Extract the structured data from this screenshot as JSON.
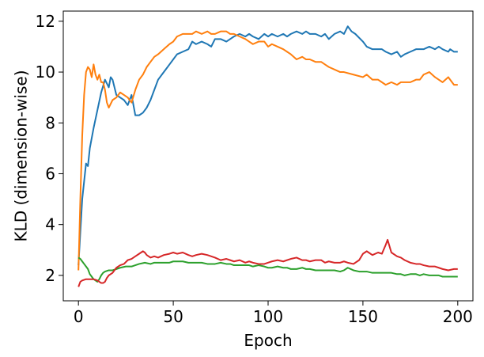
{
  "chart_data": {
    "type": "line",
    "title": "",
    "xlabel": "Epoch",
    "ylabel": "KLD (dimension-wise)",
    "xlim": [
      -8,
      208
    ],
    "ylim": [
      1.0,
      12.4
    ],
    "grid": false,
    "legend": "none",
    "xticks": [
      {
        "value": 0,
        "label": "0"
      },
      {
        "value": 50,
        "label": "50"
      },
      {
        "value": 100,
        "label": "100"
      },
      {
        "value": 150,
        "label": "150"
      },
      {
        "value": 200,
        "label": "200"
      }
    ],
    "yticks": [
      {
        "value": 2,
        "label": "2"
      },
      {
        "value": 4,
        "label": "4"
      },
      {
        "value": 6,
        "label": "6"
      },
      {
        "value": 8,
        "label": "8"
      },
      {
        "value": 10,
        "label": "10"
      },
      {
        "value": 12,
        "label": "12"
      }
    ],
    "series": [
      {
        "color": "#1f77b4",
        "x": [
          0,
          2,
          4,
          5,
          6,
          8,
          10,
          12,
          14,
          16,
          17,
          18,
          20,
          22,
          24,
          26,
          28,
          30,
          32,
          34,
          36,
          38,
          40,
          42,
          44,
          46,
          48,
          50,
          52,
          55,
          58,
          60,
          62,
          65,
          68,
          70,
          72,
          75,
          78,
          80,
          82,
          85,
          88,
          90,
          92,
          95,
          98,
          100,
          102,
          105,
          108,
          110,
          112,
          115,
          118,
          120,
          122,
          125,
          128,
          130,
          132,
          135,
          138,
          140,
          142,
          144,
          146,
          150,
          152,
          155,
          158,
          160,
          162,
          165,
          168,
          170,
          172,
          175,
          178,
          180,
          182,
          185,
          188,
          190,
          192,
          195,
          196,
          198,
          200
        ],
        "y": [
          2.4,
          5.0,
          6.4,
          6.3,
          7.0,
          7.8,
          8.5,
          9.2,
          9.7,
          9.4,
          9.8,
          9.7,
          9.1,
          9.0,
          8.9,
          8.7,
          9.1,
          8.3,
          8.3,
          8.4,
          8.6,
          8.9,
          9.3,
          9.7,
          9.9,
          10.1,
          10.3,
          10.5,
          10.7,
          10.8,
          10.9,
          11.2,
          11.1,
          11.2,
          11.1,
          11.0,
          11.3,
          11.3,
          11.2,
          11.3,
          11.4,
          11.5,
          11.4,
          11.5,
          11.4,
          11.3,
          11.5,
          11.4,
          11.5,
          11.4,
          11.5,
          11.4,
          11.5,
          11.6,
          11.5,
          11.6,
          11.5,
          11.5,
          11.4,
          11.5,
          11.3,
          11.5,
          11.6,
          11.5,
          11.8,
          11.6,
          11.5,
          11.2,
          11.0,
          10.9,
          10.9,
          10.9,
          10.8,
          10.7,
          10.8,
          10.6,
          10.7,
          10.8,
          10.9,
          10.9,
          10.9,
          11.0,
          10.9,
          11.0,
          10.9,
          10.8,
          10.9,
          10.8,
          10.8
        ]
      },
      {
        "color": "#ff7f0e",
        "x": [
          0,
          1,
          2,
          3,
          4,
          5,
          6,
          7,
          8,
          9,
          10,
          11,
          12,
          13,
          14,
          15,
          16,
          18,
          20,
          22,
          24,
          26,
          28,
          30,
          32,
          34,
          36,
          38,
          40,
          42,
          45,
          48,
          50,
          52,
          55,
          58,
          60,
          62,
          65,
          68,
          70,
          72,
          75,
          78,
          80,
          82,
          85,
          88,
          90,
          92,
          95,
          98,
          100,
          102,
          105,
          108,
          110,
          112,
          115,
          118,
          120,
          122,
          125,
          128,
          130,
          132,
          135,
          138,
          140,
          145,
          150,
          152,
          155,
          158,
          160,
          162,
          165,
          168,
          170,
          172,
          175,
          178,
          180,
          182,
          185,
          188,
          190,
          192,
          195,
          198,
          200
        ],
        "y": [
          2.2,
          5.0,
          7.5,
          9.1,
          10.0,
          10.2,
          10.1,
          9.8,
          10.3,
          9.9,
          9.7,
          9.9,
          9.6,
          9.6,
          9.3,
          8.8,
          8.6,
          8.9,
          9.0,
          9.2,
          9.1,
          9.0,
          8.8,
          9.3,
          9.7,
          9.9,
          10.2,
          10.4,
          10.6,
          10.7,
          10.9,
          11.1,
          11.2,
          11.4,
          11.5,
          11.5,
          11.5,
          11.6,
          11.5,
          11.6,
          11.5,
          11.5,
          11.6,
          11.6,
          11.5,
          11.5,
          11.4,
          11.3,
          11.2,
          11.1,
          11.2,
          11.2,
          11.0,
          11.1,
          11.0,
          10.9,
          10.8,
          10.7,
          10.5,
          10.6,
          10.5,
          10.5,
          10.4,
          10.4,
          10.3,
          10.2,
          10.1,
          10.0,
          10.0,
          9.9,
          9.8,
          9.9,
          9.7,
          9.7,
          9.6,
          9.5,
          9.6,
          9.5,
          9.6,
          9.6,
          9.6,
          9.7,
          9.7,
          9.9,
          10.0,
          9.8,
          9.7,
          9.6,
          9.8,
          9.5,
          9.5
        ]
      },
      {
        "color": "#2ca02c",
        "x": [
          0,
          1,
          2,
          3,
          4,
          5,
          6,
          7,
          8,
          9,
          10,
          11,
          12,
          13,
          14,
          16,
          18,
          20,
          22,
          25,
          28,
          30,
          32,
          35,
          38,
          40,
          42,
          45,
          48,
          50,
          52,
          55,
          58,
          60,
          62,
          65,
          68,
          70,
          72,
          75,
          78,
          80,
          82,
          85,
          88,
          90,
          92,
          95,
          98,
          100,
          102,
          105,
          108,
          110,
          112,
          115,
          118,
          120,
          122,
          125,
          128,
          130,
          132,
          135,
          138,
          140,
          142,
          145,
          148,
          150,
          152,
          155,
          158,
          160,
          162,
          165,
          168,
          170,
          172,
          175,
          178,
          180,
          182,
          185,
          188,
          190,
          192,
          195,
          198,
          200
        ],
        "y": [
          2.7,
          2.65,
          2.55,
          2.45,
          2.35,
          2.25,
          2.05,
          1.95,
          1.85,
          1.8,
          1.75,
          1.85,
          2.0,
          2.1,
          2.15,
          2.2,
          2.2,
          2.25,
          2.3,
          2.35,
          2.35,
          2.4,
          2.45,
          2.5,
          2.45,
          2.5,
          2.5,
          2.5,
          2.5,
          2.55,
          2.55,
          2.55,
          2.5,
          2.5,
          2.5,
          2.5,
          2.45,
          2.45,
          2.45,
          2.5,
          2.45,
          2.45,
          2.4,
          2.4,
          2.4,
          2.4,
          2.35,
          2.4,
          2.35,
          2.3,
          2.3,
          2.35,
          2.3,
          2.3,
          2.25,
          2.25,
          2.3,
          2.25,
          2.25,
          2.2,
          2.2,
          2.2,
          2.2,
          2.2,
          2.15,
          2.2,
          2.3,
          2.2,
          2.15,
          2.15,
          2.15,
          2.1,
          2.1,
          2.1,
          2.1,
          2.1,
          2.05,
          2.05,
          2.0,
          2.05,
          2.05,
          2.0,
          2.05,
          2.0,
          2.0,
          2.0,
          1.95,
          1.95,
          1.95,
          1.95
        ]
      },
      {
        "color": "#d62728",
        "x": [
          0,
          1,
          2,
          4,
          6,
          8,
          10,
          12,
          13,
          14,
          15,
          16,
          18,
          20,
          22,
          24,
          26,
          28,
          30,
          32,
          34,
          35,
          36,
          38,
          40,
          42,
          45,
          48,
          50,
          52,
          55,
          58,
          60,
          62,
          65,
          68,
          70,
          72,
          75,
          78,
          80,
          82,
          85,
          88,
          90,
          92,
          95,
          98,
          100,
          102,
          105,
          108,
          110,
          112,
          115,
          118,
          120,
          122,
          125,
          128,
          130,
          132,
          135,
          138,
          140,
          142,
          145,
          148,
          150,
          152,
          155,
          158,
          160,
          162,
          163,
          165,
          168,
          170,
          172,
          175,
          178,
          180,
          182,
          185,
          188,
          190,
          192,
          195,
          198,
          200
        ],
        "y": [
          1.55,
          1.75,
          1.8,
          1.85,
          1.85,
          1.85,
          1.8,
          1.7,
          1.7,
          1.75,
          1.9,
          2.0,
          2.1,
          2.3,
          2.4,
          2.45,
          2.6,
          2.65,
          2.75,
          2.85,
          2.95,
          2.9,
          2.8,
          2.7,
          2.75,
          2.7,
          2.8,
          2.85,
          2.9,
          2.85,
          2.9,
          2.8,
          2.75,
          2.8,
          2.85,
          2.8,
          2.75,
          2.7,
          2.6,
          2.65,
          2.6,
          2.55,
          2.6,
          2.5,
          2.55,
          2.5,
          2.45,
          2.45,
          2.5,
          2.55,
          2.6,
          2.55,
          2.6,
          2.65,
          2.7,
          2.6,
          2.6,
          2.55,
          2.6,
          2.6,
          2.5,
          2.55,
          2.5,
          2.5,
          2.55,
          2.5,
          2.45,
          2.6,
          2.85,
          2.95,
          2.8,
          2.9,
          2.85,
          3.2,
          3.4,
          2.9,
          2.75,
          2.7,
          2.6,
          2.5,
          2.45,
          2.45,
          2.4,
          2.35,
          2.35,
          2.3,
          2.25,
          2.2,
          2.25,
          2.25
        ]
      }
    ]
  }
}
